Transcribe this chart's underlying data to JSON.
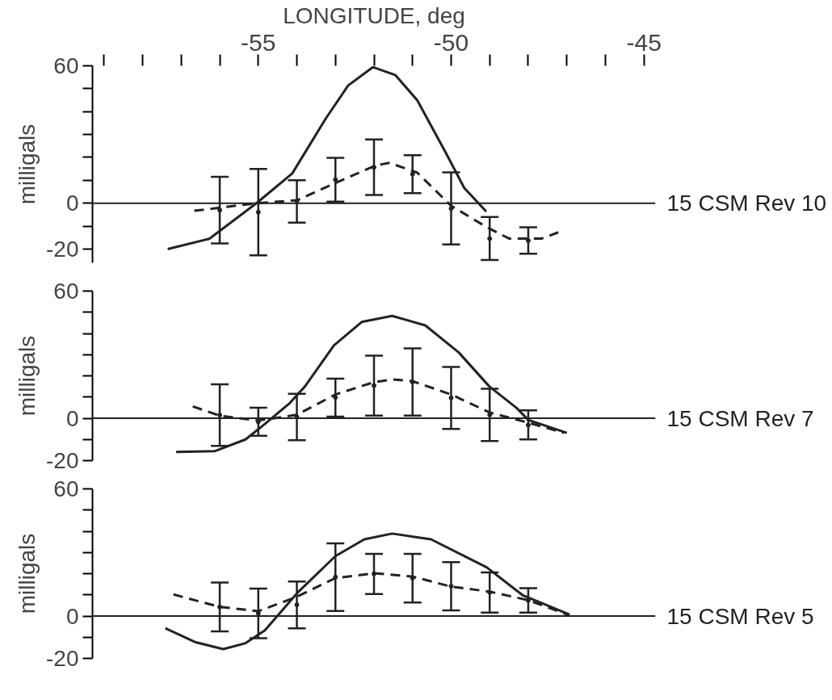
{
  "chart_data": [
    {
      "type": "line",
      "xlabel": "LONGITUDE, deg",
      "ylabel": "milligals",
      "xlim": [
        -59.3,
        -44.7
      ],
      "xticks": [
        {
          "value": -59,
          "label": null
        },
        {
          "value": -58,
          "label": null
        },
        {
          "value": -57,
          "label": null
        },
        {
          "value": -56,
          "label": null
        },
        -55,
        {
          "value": -54,
          "label": null
        },
        {
          "value": -53,
          "label": null
        },
        {
          "value": -52,
          "label": null
        },
        {
          "value": -51,
          "label": null
        },
        -50,
        {
          "value": -49,
          "label": null
        },
        {
          "value": -48,
          "label": null
        },
        {
          "value": -47,
          "label": null
        },
        {
          "value": -46,
          "label": null
        },
        -45
      ],
      "ylim": [
        -26,
        60
      ],
      "yticks": [
        -20,
        {
          "value": -10,
          "label": null
        },
        0,
        {
          "value": 10,
          "label": null
        },
        {
          "value": 20,
          "label": null
        },
        {
          "value": 30,
          "label": null
        },
        {
          "value": 40,
          "label": null
        },
        {
          "value": 50,
          "label": null
        },
        60
      ],
      "ref_lines": [
        {
          "axis": "y",
          "value": 0,
          "label": "15 CSM Rev 10"
        }
      ],
      "series": [
        {
          "line_style": "solid",
          "color": "#222222",
          "x": [
            -57.35,
            -56.27,
            -55.05,
            -54.12,
            -53.25,
            -52.67,
            -52.03,
            -51.45,
            -50.88,
            -50.16,
            -49.66,
            -49.09
          ],
          "values": [
            -20,
            -15.5,
            0,
            13,
            37,
            51.4,
            59.4,
            56,
            45,
            22.7,
            6.7,
            -3.6
          ]
        },
        {
          "line_style": "dashed",
          "color": "#222222",
          "x": [
            -56.66,
            -55.05,
            -54,
            -53.03,
            -51.96,
            -51.6,
            -50.88,
            -50,
            -49.09,
            -48.5,
            -47.65,
            -47.22
          ],
          "values": [
            -3.3,
            0,
            1.3,
            8.6,
            16.5,
            17.6,
            13.4,
            -1.1,
            -10.3,
            -15.4,
            -15.4,
            -12.7
          ]
        },
        {
          "type": "scatter",
          "marker": "circle",
          "color": "#222222",
          "x": [
            -56,
            -55,
            -54,
            -53,
            -52,
            -51,
            -50,
            -49,
            -48
          ],
          "values": [
            -3,
            -3.9,
            0.8,
            10.3,
            15.7,
            12.7,
            -2.3,
            -15.4,
            -16.3
          ],
          "errors": [
            [
              -17.5,
              11.5
            ],
            [
              -22.7,
              15
            ],
            [
              -8.5,
              10
            ],
            [
              0.7,
              19.8
            ],
            [
              3.6,
              27.8
            ],
            [
              4.4,
              21
            ],
            [
              -18,
              13.5
            ],
            [
              -24.8,
              -6
            ],
            [
              -22,
              -10.5
            ]
          ]
        }
      ]
    },
    {
      "type": "line",
      "ylabel": "milligals",
      "tick_labels": "y",
      "xlim": [
        -59.3,
        -44.7
      ],
      "ylim": [
        -20,
        60
      ],
      "yticks": [
        -20,
        {
          "value": -10,
          "label": null
        },
        0,
        {
          "value": 10,
          "label": null
        },
        {
          "value": 20,
          "label": null
        },
        {
          "value": 30,
          "label": null
        },
        {
          "value": 40,
          "label": null
        },
        {
          "value": 50,
          "label": null
        },
        60
      ],
      "ref_lines": [
        {
          "axis": "y",
          "value": 0,
          "label": "15 CSM Rev 7"
        }
      ],
      "series": [
        {
          "line_style": "solid",
          "color": "#222222",
          "x": [
            -57.13,
            -56.12,
            -55.33,
            -54.83,
            -54.18,
            -53.79,
            -53.04,
            -52.32,
            -51.53,
            -50.67,
            -49.8,
            -49.01,
            -48.3,
            -48.0,
            -47.0
          ],
          "values": [
            -15.9,
            -15.5,
            -10,
            -2.7,
            7.2,
            15,
            34.3,
            45.4,
            48.3,
            43.8,
            31,
            15,
            4.8,
            -0.8,
            -6.9
          ]
        },
        {
          "line_style": "dashed",
          "color": "#222222",
          "x": [
            -56.7,
            -56,
            -55,
            -54,
            -53,
            -52,
            -51.53,
            -51,
            -50,
            -49,
            -48,
            -47.07
          ],
          "values": [
            5.6,
            1.2,
            -1.1,
            1.6,
            11.2,
            17,
            18.3,
            17.5,
            11.2,
            2.7,
            -2.1,
            -6.9
          ]
        },
        {
          "type": "scatter",
          "marker": "circle",
          "color": "#222222",
          "x": [
            -56,
            -55,
            -54,
            -53,
            -52,
            -51,
            -50,
            -49,
            -48
          ],
          "values": [
            1.5,
            -1.7,
            0.6,
            9.8,
            15.4,
            17.1,
            9.6,
            1.6,
            -3.2
          ],
          "errors": [
            [
              -13,
              16
            ],
            [
              -8.3,
              5
            ],
            [
              -10.4,
              11.5
            ],
            [
              0.8,
              18.7
            ],
            [
              1.2,
              29.5
            ],
            [
              1.2,
              33
            ],
            [
              -5,
              24.2
            ],
            [
              -10.8,
              13.9
            ],
            [
              -10,
              3.7
            ]
          ]
        }
      ]
    },
    {
      "type": "line",
      "ylabel": "milligals",
      "tick_labels": "y",
      "xlim": [
        -59.3,
        -44.7
      ],
      "ylim": [
        -20,
        60
      ],
      "yticks": [
        -20,
        {
          "value": -10,
          "label": null
        },
        0,
        {
          "value": 10,
          "label": null
        },
        {
          "value": 20,
          "label": null
        },
        {
          "value": 30,
          "label": null
        },
        {
          "value": 40,
          "label": null
        },
        {
          "value": 50,
          "label": null
        },
        60
      ],
      "ref_lines": [
        {
          "axis": "y",
          "value": 0,
          "label": "15 CSM Rev 5"
        }
      ],
      "series": [
        {
          "line_style": "solid",
          "color": "#222222",
          "x": [
            -57.41,
            -56.62,
            -55.91,
            -55.33,
            -54.83,
            -54.0,
            -53.0,
            -52.25,
            -51.53,
            -50.52,
            -49.08,
            -48.15,
            -46.93
          ],
          "values": [
            -5.8,
            -12.4,
            -15.6,
            -12.8,
            -6.8,
            10.7,
            28.3,
            36.2,
            38.9,
            36.2,
            23,
            9.9,
            0.7
          ]
        },
        {
          "line_style": "dashed",
          "color": "#222222",
          "x": [
            -57.2,
            -56,
            -55,
            -54,
            -53,
            -52,
            -51,
            -50,
            -49,
            -48,
            -46.93
          ],
          "values": [
            10.2,
            4.3,
            2.3,
            9.1,
            17.9,
            20.2,
            18.6,
            13.9,
            11.5,
            7.5,
            0.3
          ]
        },
        {
          "type": "scatter",
          "marker": "circle",
          "color": "#222222",
          "x": [
            -56,
            -55,
            -54,
            -53,
            -52,
            -51,
            -50,
            -49,
            -48
          ],
          "values": [
            4.3,
            1.3,
            5.3,
            18.4,
            19.9,
            17.9,
            14.1,
            11.1,
            7.4
          ],
          "errors": [
            [
              -7.2,
              15.8
            ],
            [
              -10.5,
              13
            ],
            [
              -5.8,
              16.3
            ],
            [
              2.4,
              34.3
            ],
            [
              10.4,
              29.3
            ],
            [
              6.4,
              29.3
            ],
            [
              2.7,
              25.4
            ],
            [
              1.6,
              20.6
            ],
            [
              1.6,
              13.1
            ]
          ]
        }
      ]
    }
  ]
}
